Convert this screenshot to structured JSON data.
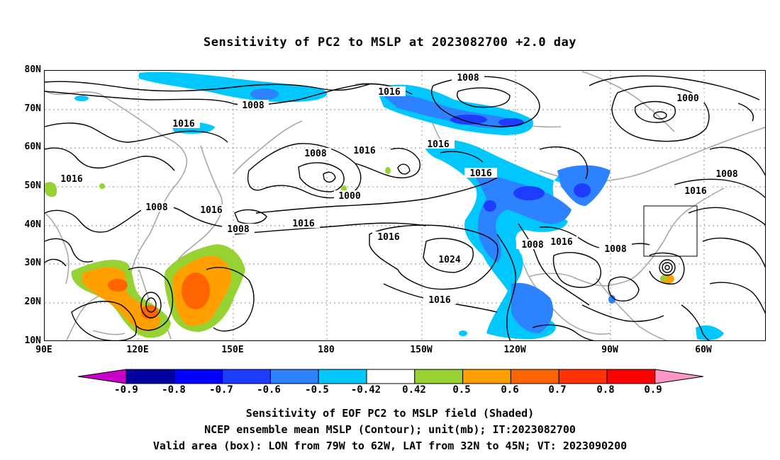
{
  "title": "Sensitivity of PC2 to MSLP at 2023082700 +2.0 day",
  "map": {
    "lon_ticks": [
      "90E",
      "120E",
      "150E",
      "180",
      "150W",
      "120W",
      "90W",
      "60W"
    ],
    "lat_ticks": [
      "80N",
      "70N",
      "60N",
      "50N",
      "40N",
      "30N",
      "20N",
      "10N"
    ],
    "contour_labels": [
      "1008",
      "1016",
      "1016",
      "1008",
      "1000",
      "1008",
      "1016",
      "1016",
      "1016",
      "1008",
      "1016",
      "1008",
      "1000",
      "1016",
      "1024",
      "1016",
      "1008",
      "1016",
      "1008",
      "1016",
      "1008",
      "1016"
    ],
    "valid_box": {
      "lon_from": "79W",
      "lon_to": "62W",
      "lat_from": "32N",
      "lat_to": "45N"
    },
    "colors": {
      "coast": "#a8a8a8",
      "contour": "#000000",
      "grid": "#8c8c8c"
    }
  },
  "colorbar": {
    "labels": [
      "-0.9",
      "-0.8",
      "-0.7",
      "-0.6",
      "-0.5",
      "-0.42",
      "0.42",
      "0.5",
      "0.6",
      "0.7",
      "0.8",
      "0.9"
    ],
    "colors": [
      "#c800c8",
      "#0000a0",
      "#0000ff",
      "#1e3cff",
      "#2d82ff",
      "#00c8ff",
      "#ffffff",
      "#96d232",
      "#ffa000",
      "#ff6400",
      "#ff3200",
      "#ff0000",
      "#ff96c8"
    ]
  },
  "caption": {
    "line1": "Sensitivity of EOF PC2 to MSLP field (Shaded)",
    "line2": "NCEP ensemble mean MSLP (Contour); unit(mb); IT:2023082700",
    "line3": "Valid area (box): LON from 79W to 62W, LAT from 32N to 45N; VT: 2023090200"
  }
}
